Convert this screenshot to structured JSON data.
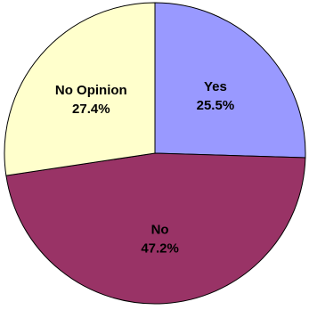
{
  "chart_data": {
    "type": "pie",
    "slices": [
      {
        "label": "Yes",
        "value": 25.5,
        "value_label": "25.5%",
        "color": "#9999ff"
      },
      {
        "label": "No",
        "value": 47.2,
        "value_label": "47.2%",
        "color": "#993366"
      },
      {
        "label": "No Opinion",
        "value": 27.4,
        "value_label": "27.4%",
        "color": "#ffffcc"
      }
    ],
    "start_angle_deg": 0,
    "direction": "clockwise",
    "legend": "none"
  }
}
